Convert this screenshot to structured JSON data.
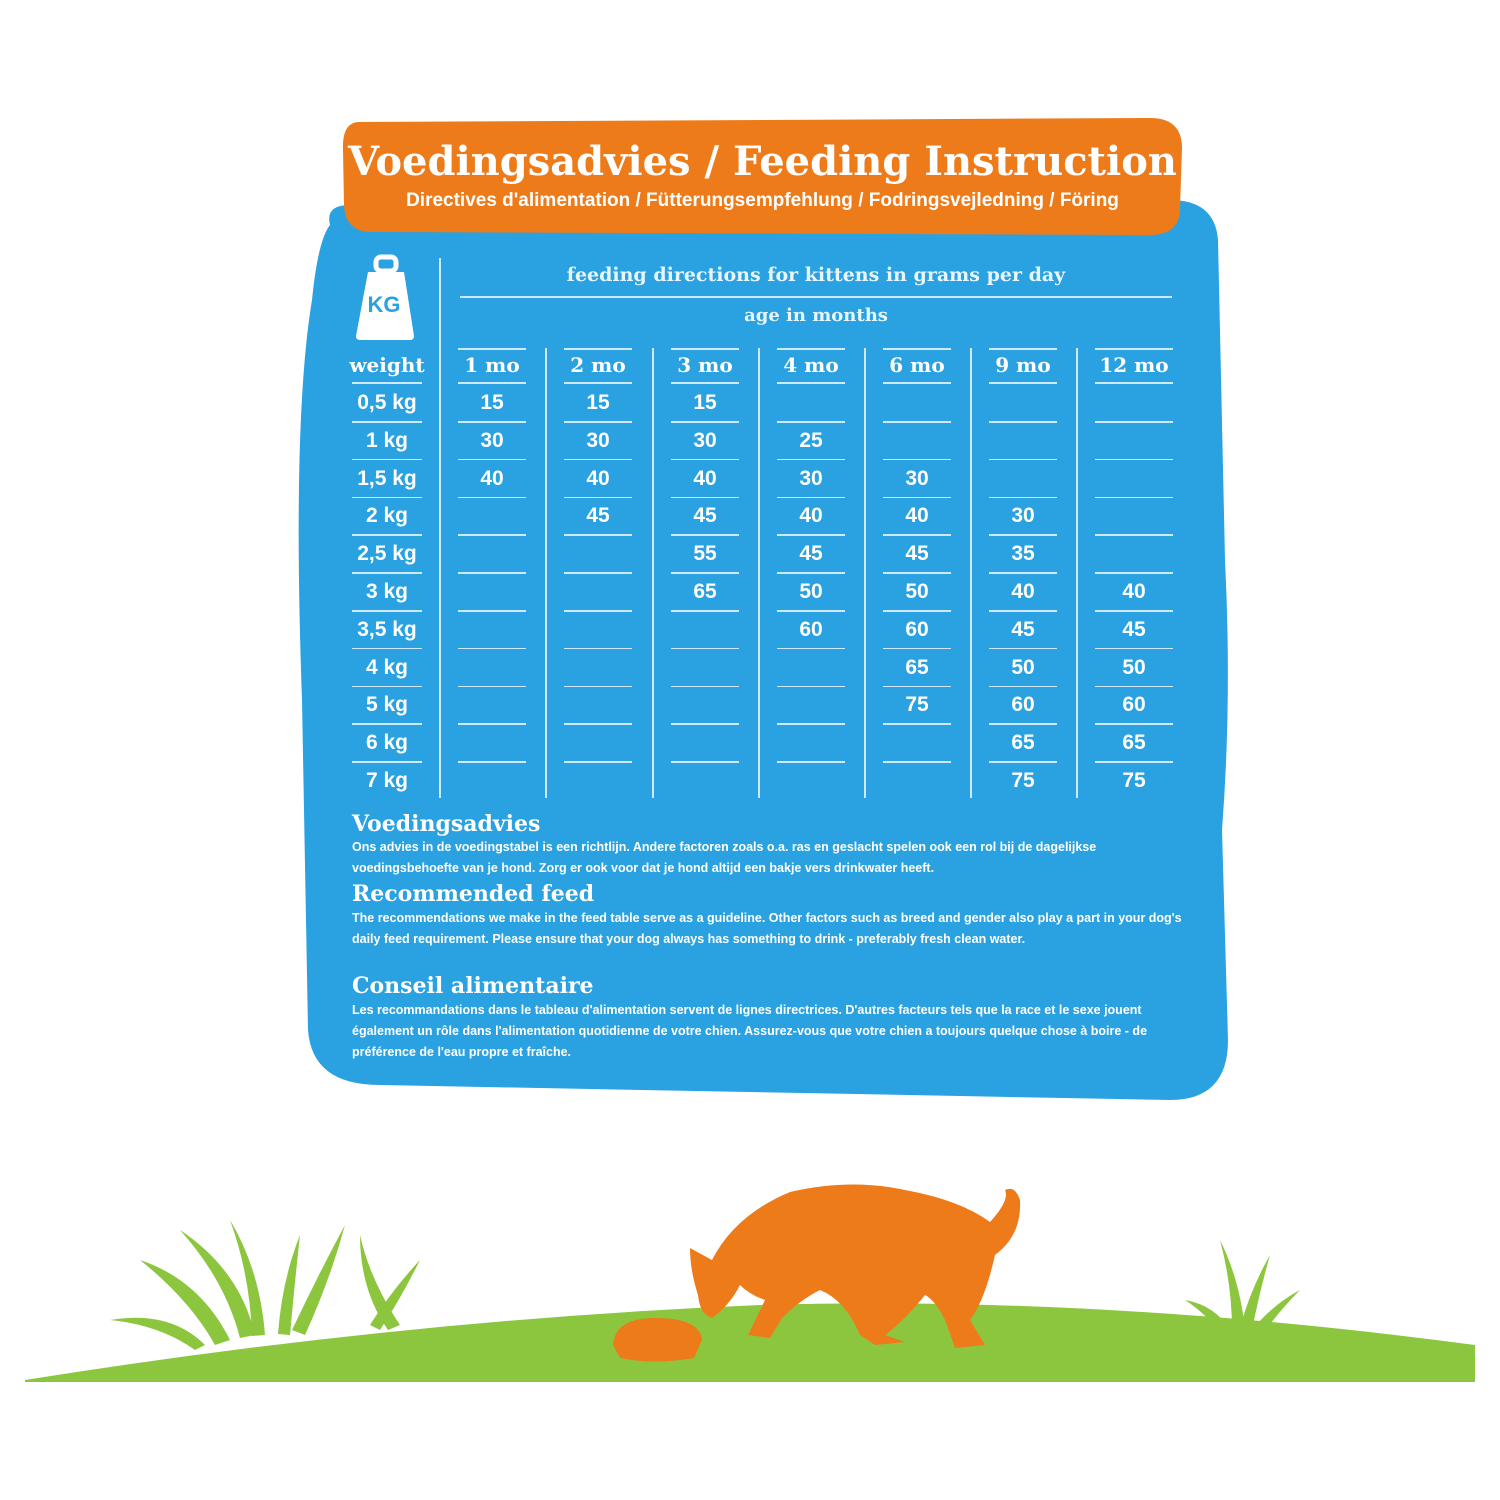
{
  "header": {
    "title": "Voedingsadvies / Feeding Instruction",
    "subtitle": "Directives d'alimentation / Fütterungsempfehlung / Fodringsvejledning / Föring"
  },
  "table": {
    "title": "feeding directions for kittens in grams per day",
    "subtitle": "age in months",
    "weight_label": "weight",
    "scale_icon_label": "KG",
    "columns": [
      "1 mo",
      "2 mo",
      "3 mo",
      "4 mo",
      "6 mo",
      "9 mo",
      "12 mo"
    ],
    "rows": [
      {
        "weight": "0,5 kg",
        "values": [
          "15",
          "15",
          "15",
          "",
          "",
          "",
          ""
        ]
      },
      {
        "weight": "1 kg",
        "values": [
          "30",
          "30",
          "30",
          "25",
          "",
          "",
          ""
        ]
      },
      {
        "weight": "1,5 kg",
        "values": [
          "40",
          "40",
          "40",
          "30",
          "30",
          "",
          ""
        ]
      },
      {
        "weight": "2 kg",
        "values": [
          "",
          "45",
          "45",
          "40",
          "40",
          "30",
          ""
        ]
      },
      {
        "weight": "2,5 kg",
        "values": [
          "",
          "",
          "55",
          "45",
          "45",
          "35",
          ""
        ]
      },
      {
        "weight": "3 kg",
        "values": [
          "",
          "",
          "65",
          "50",
          "50",
          "40",
          "40"
        ]
      },
      {
        "weight": "3,5 kg",
        "values": [
          "",
          "",
          "",
          "60",
          "60",
          "45",
          "45"
        ]
      },
      {
        "weight": "4 kg",
        "values": [
          "",
          "",
          "",
          "",
          "65",
          "50",
          "50"
        ]
      },
      {
        "weight": "5 kg",
        "values": [
          "",
          "",
          "",
          "",
          "75",
          "60",
          "60"
        ]
      },
      {
        "weight": "6 kg",
        "values": [
          "",
          "",
          "",
          "",
          "",
          "65",
          "65"
        ]
      },
      {
        "weight": "7 kg",
        "values": [
          "",
          "",
          "",
          "",
          "",
          "75",
          "75"
        ]
      }
    ]
  },
  "sections": [
    {
      "heading": "Voedingsadvies",
      "body": "Ons advies in de voedingstabel is een richtlijn. Andere factoren zoals o.a. ras en geslacht spelen ook een rol bij de dagelijkse voedingsbehoefte van je hond. Zorg er ook voor dat je hond altijd een bakje vers drinkwater heeft."
    },
    {
      "heading": "Recommended feed",
      "body": "The recommendations we make in the feed table serve as a guideline. Other factors such as breed and gender also play a part in your dog's daily feed requirement. Please ensure that your dog always has something to drink - preferably fresh clean water."
    },
    {
      "heading": "Conseil alimentaire",
      "body": "Les recommandations dans le tableau d'alimentation servent de lignes directrices. D'autres facteurs tels que la race et le sexe jouent également un rôle dans l'alimentation quotidienne de votre chien. Assurez-vous que votre chien a toujours quelque chose à boire - de préférence de l'eau propre et fraîche."
    }
  ],
  "colors": {
    "panel_blue": "#2aa1e0",
    "banner_orange": "#ee7b1a",
    "grass_green": "#8cc63f",
    "cat_orange": "#ee7b1a"
  }
}
